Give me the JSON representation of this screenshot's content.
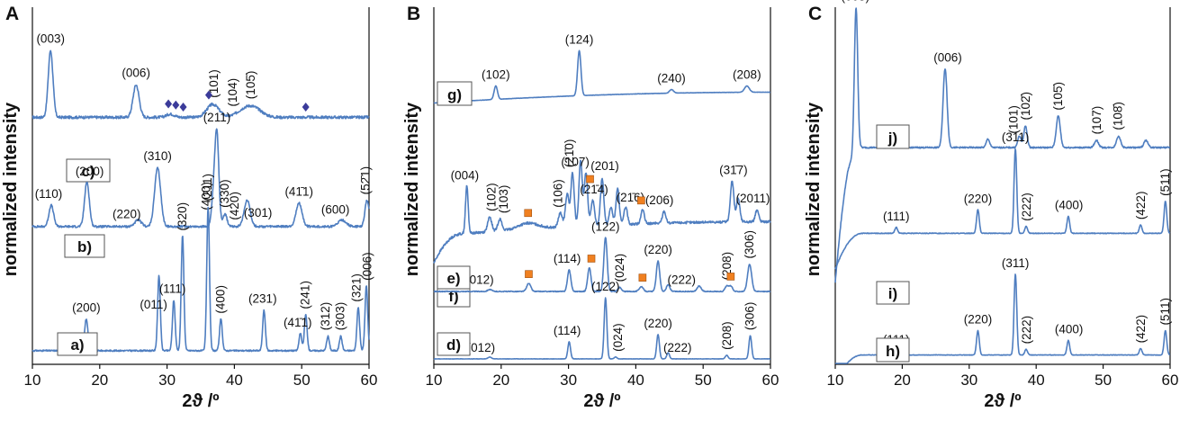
{
  "figure": {
    "panels": [
      "A",
      "B",
      "C"
    ],
    "xlabel": "2ϑ /º",
    "ylabel": "normalized intensity",
    "xticks": [
      10,
      20,
      30,
      40,
      50,
      60
    ],
    "colors": {
      "trace": "#4f7ec0",
      "trace_dark": "#3a67a8",
      "diamond": "#3b3b9a",
      "square": "#f08020",
      "axis": "#111111"
    }
  },
  "chart_data": [
    {
      "panel": "A",
      "type": "line",
      "xlabel": "2ϑ /º",
      "ylabel": "normalized intensity",
      "xlim": [
        10,
        60
      ],
      "series": [
        {
          "name": "c)",
          "baseline": 0.18,
          "noise": 0.025,
          "peaks": [
            [
              12.7,
              0.62,
              0.35
            ],
            [
              25.4,
              0.3,
              0.45
            ],
            [
              36.8,
              0.12,
              0.9
            ],
            [
              41.5,
              0.06,
              1.2
            ],
            [
              43.0,
              0.07,
              1.2
            ],
            [
              30.5,
              0.03,
              0.6
            ]
          ],
          "labels": [
            {
              "x": 12.7,
              "text": "(003)"
            },
            {
              "x": 25.4,
              "text": "(006)"
            },
            {
              "x": 37.0,
              "text": "(101)",
              "rot": true
            },
            {
              "x": 39.8,
              "text": "(104)",
              "rot": true
            },
            {
              "x": 42.5,
              "text": "(105̄)",
              "rot": true
            }
          ],
          "markers": {
            "shape": "diamond",
            "x": [
              30.2,
              31.3,
              32.4,
              36.2,
              50.6
            ]
          }
        },
        {
          "name": "b)",
          "baseline": 0.12,
          "noise": 0.02,
          "peaks": [
            [
              12.8,
              0.2,
              0.35
            ],
            [
              18.1,
              0.42,
              0.35
            ],
            [
              25.7,
              0.06,
              0.5
            ],
            [
              28.6,
              0.55,
              0.45
            ],
            [
              36.9,
              0.25,
              0.3
            ],
            [
              37.4,
              0.85,
              0.3
            ],
            [
              38.6,
              0.12,
              0.3
            ],
            [
              41.9,
              0.25,
              0.45
            ],
            [
              49.6,
              0.22,
              0.45
            ],
            [
              56.0,
              0.06,
              0.6
            ],
            [
              59.7,
              0.25,
              0.3
            ]
          ],
          "labels": [
            {
              "x": 12.4,
              "text": "(110)"
            },
            {
              "x": 18.5,
              "text": "(200)"
            },
            {
              "x": 24.0,
              "text": "(220)"
            },
            {
              "x": 28.6,
              "text": "(310)"
            },
            {
              "x": 37.4,
              "text": "(211)"
            },
            {
              "x": 35.9,
              "text": "(400)",
              "rot": true
            },
            {
              "x": 38.6,
              "text": "(330)",
              "rot": true
            },
            {
              "x": 40.1,
              "text": "(420)",
              "rot": true
            },
            {
              "x": 43.5,
              "text": "(301)"
            },
            {
              "x": 49.6,
              "text": "(41̄1)"
            },
            {
              "x": 55.0,
              "text": "(600)"
            },
            {
              "x": 59.5,
              "text": "(52̄1)",
              "rot": true
            }
          ]
        },
        {
          "name": "a)",
          "baseline": 0.07,
          "noise": 0.01,
          "peaks": [
            [
              18.0,
              0.22,
              0.25
            ],
            [
              28.8,
              0.52,
              0.2
            ],
            [
              31.0,
              0.35,
              0.2
            ],
            [
              32.3,
              0.8,
              0.2
            ],
            [
              36.1,
              1.0,
              0.2
            ],
            [
              38.0,
              0.22,
              0.2
            ],
            [
              44.4,
              0.28,
              0.2
            ],
            [
              49.8,
              0.12,
              0.2
            ],
            [
              50.6,
              0.25,
              0.2
            ],
            [
              53.9,
              0.1,
              0.2
            ],
            [
              55.8,
              0.1,
              0.2
            ],
            [
              58.4,
              0.3,
              0.2
            ],
            [
              59.6,
              0.45,
              0.2
            ]
          ],
          "labels": [
            {
              "x": 18.0,
              "text": "(200)"
            },
            {
              "x": 28.0,
              "text": "(011)"
            },
            {
              "x": 30.8,
              "text": "(111)"
            },
            {
              "x": 32.3,
              "text": "(320)",
              "rot": true
            },
            {
              "x": 36.1,
              "text": "(211)",
              "rot": true
            },
            {
              "x": 38.0,
              "text": "(400)",
              "rot": true
            },
            {
              "x": 44.2,
              "text": "(231)"
            },
            {
              "x": 49.4,
              "text": "(41̄1)"
            },
            {
              "x": 50.6,
              "text": "(241)",
              "rot": true
            },
            {
              "x": 53.6,
              "text": "(312)",
              "rot": true
            },
            {
              "x": 55.8,
              "text": "(303)",
              "rot": true
            },
            {
              "x": 58.2,
              "text": "(321)",
              "rot": true
            },
            {
              "x": 59.8,
              "text": "(006)",
              "rot": true
            }
          ]
        }
      ]
    },
    {
      "panel": "B",
      "type": "line",
      "xlabel": "2ϑ /º",
      "ylabel": "normalized intensity",
      "xlim": [
        10,
        60
      ],
      "series": [
        {
          "name": "g)",
          "baseline": 0.05,
          "noise": 0.006,
          "peaks": [
            [
              19.2,
              0.3,
              0.25
            ],
            [
              31.6,
              1.0,
              0.25
            ],
            [
              45.3,
              0.08,
              0.3
            ],
            [
              56.5,
              0.14,
              0.35
            ]
          ],
          "labels": [
            {
              "x": 19.2,
              "text": "(102)"
            },
            {
              "x": 31.6,
              "text": "(124)"
            },
            {
              "x": 45.3,
              "text": "(240)"
            },
            {
              "x": 56.5,
              "text": "(208)"
            }
          ]
        },
        {
          "name": "f)",
          "baseline": 0.08,
          "noise": 0.02,
          "peaks": [
            [
              14.9,
              0.4,
              0.2
            ],
            [
              18.3,
              0.12,
              0.3
            ],
            [
              19.8,
              0.1,
              0.3
            ],
            [
              24.0,
              0.05,
              1.5
            ],
            [
              28.8,
              0.12,
              0.3
            ],
            [
              29.8,
              0.28,
              0.25
            ],
            [
              30.6,
              0.45,
              0.25
            ],
            [
              31.8,
              0.55,
              0.25
            ],
            [
              32.6,
              0.45,
              0.25
            ],
            [
              33.6,
              0.22,
              0.25
            ],
            [
              35.0,
              0.4,
              0.25
            ],
            [
              36.3,
              0.15,
              0.25
            ],
            [
              37.3,
              0.3,
              0.25
            ],
            [
              38.5,
              0.15,
              0.25
            ],
            [
              41.0,
              0.12,
              0.25
            ],
            [
              44.2,
              0.1,
              0.25
            ],
            [
              54.3,
              0.35,
              0.25
            ],
            [
              55.2,
              0.2,
              0.25
            ],
            [
              58.0,
              0.1,
              0.25
            ]
          ],
          "labels": [
            {
              "x": 14.6,
              "text": "(004)"
            },
            {
              "x": 18.6,
              "text": "(102)",
              "rot": true
            },
            {
              "x": 20.4,
              "text": "(103)",
              "rot": true
            },
            {
              "x": 28.5,
              "text": "(106)",
              "rot": true
            },
            {
              "x": 30.2,
              "text": "(21̄0)",
              "rot": true
            },
            {
              "x": 31.0,
              "text": "(107)"
            },
            {
              "x": 33.8,
              "text": "(21̄4)"
            },
            {
              "x": 35.4,
              "text": "(201)"
            },
            {
              "x": 39.2,
              "text": "(21̄6)"
            },
            {
              "x": 43.5,
              "text": "(206)"
            },
            {
              "x": 54.5,
              "text": "(31̄7)"
            },
            {
              "x": 57.4,
              "text": "(2011)"
            }
          ],
          "markers": {
            "shape": "square",
            "x": [
              24.0,
              33.2,
              40.8
            ]
          }
        },
        {
          "name": "e)",
          "baseline": 0.08,
          "noise": 0.012,
          "peaks": [
            [
              18.3,
              0.03,
              0.3
            ],
            [
              24.1,
              0.12,
              0.3
            ],
            [
              30.1,
              0.32,
              0.25
            ],
            [
              33.1,
              0.35,
              0.25
            ],
            [
              35.5,
              0.8,
              0.25
            ],
            [
              37.6,
              0.06,
              0.25
            ],
            [
              40.8,
              0.07,
              0.3
            ],
            [
              43.3,
              0.45,
              0.25
            ],
            [
              44.8,
              0.1,
              0.25
            ],
            [
              49.4,
              0.08,
              0.3
            ],
            [
              53.5,
              0.08,
              0.25
            ],
            [
              54.1,
              0.08,
              0.25
            ],
            [
              56.9,
              0.4,
              0.3
            ]
          ],
          "labels": [
            {
              "x": 16.8,
              "text": "(012)"
            },
            {
              "x": 29.8,
              "text": "(114)"
            },
            {
              "x": 35.5,
              "text": "(122)"
            },
            {
              "x": 37.7,
              "text": "(024)",
              "rot": true
            },
            {
              "x": 43.3,
              "text": "(220)"
            },
            {
              "x": 46.8,
              "text": "(222)"
            },
            {
              "x": 53.6,
              "text": "(208)",
              "rot": true
            },
            {
              "x": 56.9,
              "text": "(306)",
              "rot": true
            }
          ],
          "markers": {
            "shape": "square",
            "x": [
              24.1,
              33.4,
              41.0,
              54.1
            ]
          }
        },
        {
          "name": "d)",
          "baseline": 0.03,
          "noise": 0.004,
          "peaks": [
            [
              18.3,
              0.03,
              0.25
            ],
            [
              30.1,
              0.28,
              0.2
            ],
            [
              35.5,
              1.0,
              0.2
            ],
            [
              37.0,
              0.03,
              0.2
            ],
            [
              43.3,
              0.4,
              0.2
            ],
            [
              44.8,
              0.1,
              0.2
            ],
            [
              53.5,
              0.06,
              0.2
            ],
            [
              57.0,
              0.38,
              0.2
            ]
          ],
          "labels": [
            {
              "x": 17.0,
              "text": "(012)"
            },
            {
              "x": 29.8,
              "text": "(114)"
            },
            {
              "x": 35.5,
              "text": "(122)"
            },
            {
              "x": 37.4,
              "text": "(024)",
              "rot": true
            },
            {
              "x": 43.3,
              "text": "(220)"
            },
            {
              "x": 46.2,
              "text": "(222)"
            },
            {
              "x": 53.6,
              "text": "(208)",
              "rot": true
            },
            {
              "x": 57.0,
              "text": "(306)",
              "rot": true
            }
          ]
        }
      ]
    },
    {
      "panel": "C",
      "type": "line",
      "xlabel": "2ϑ /º",
      "ylabel": "normalized intensity",
      "xlim": [
        10,
        60
      ],
      "series": [
        {
          "name": "j)",
          "baseline": 0.1,
          "noise": 0.01,
          "peaks": [
            [
              13.1,
              1.0,
              0.25
            ],
            [
              26.4,
              0.55,
              0.3
            ],
            [
              32.8,
              0.06,
              0.25
            ],
            [
              37.5,
              0.08,
              0.25
            ],
            [
              38.4,
              0.15,
              0.25
            ],
            [
              43.3,
              0.22,
              0.3
            ],
            [
              49.0,
              0.05,
              0.3
            ],
            [
              52.3,
              0.08,
              0.3
            ],
            [
              56.4,
              0.05,
              0.3
            ]
          ],
          "labels": [
            {
              "x": 13.0,
              "text": "(003)"
            },
            {
              "x": 26.8,
              "text": "(006)"
            },
            {
              "x": 36.7,
              "text": "(101)",
              "rot": true
            },
            {
              "x": 38.5,
              "text": "(102̄)",
              "rot": true
            },
            {
              "x": 43.3,
              "text": "(105̄)",
              "rot": true
            },
            {
              "x": 49.1,
              "text": "(107)",
              "rot": true
            },
            {
              "x": 52.3,
              "text": "(108̄)",
              "rot": true
            }
          ]
        },
        {
          "name": "i)",
          "baseline": 0.06,
          "noise": 0.008,
          "peaks": [
            [
              19.1,
              0.07,
              0.2
            ],
            [
              31.3,
              0.28,
              0.2
            ],
            [
              36.9,
              1.0,
              0.2
            ],
            [
              38.5,
              0.08,
              0.2
            ],
            [
              44.8,
              0.2,
              0.2
            ],
            [
              55.6,
              0.1,
              0.2
            ],
            [
              59.3,
              0.38,
              0.2
            ]
          ],
          "labels": [
            {
              "x": 19.1,
              "text": "(111)"
            },
            {
              "x": 31.3,
              "text": "(220)"
            },
            {
              "x": 36.9,
              "text": "(311)"
            },
            {
              "x": 38.6,
              "text": "(222)",
              "rot": true
            },
            {
              "x": 44.9,
              "text": "(400)"
            },
            {
              "x": 55.7,
              "text": "(422)",
              "rot": true
            },
            {
              "x": 59.3,
              "text": "(511)",
              "rot": true
            }
          ]
        },
        {
          "name": "h)",
          "baseline": 0.06,
          "noise": 0.006,
          "peaks": [
            [
              19.1,
              0.05,
              0.2
            ],
            [
              31.3,
              0.3,
              0.2
            ],
            [
              36.9,
              1.0,
              0.2
            ],
            [
              38.5,
              0.07,
              0.2
            ],
            [
              44.8,
              0.18,
              0.2
            ],
            [
              55.6,
              0.08,
              0.2
            ],
            [
              59.3,
              0.3,
              0.2
            ]
          ],
          "labels": [
            {
              "x": 19.1,
              "text": "(111)"
            },
            {
              "x": 31.3,
              "text": "(220)"
            },
            {
              "x": 36.9,
              "text": "(311)"
            },
            {
              "x": 38.6,
              "text": "(222)",
              "rot": true
            },
            {
              "x": 44.9,
              "text": "(400)"
            },
            {
              "x": 55.7,
              "text": "(422)",
              "rot": true
            },
            {
              "x": 59.3,
              "text": "(511)",
              "rot": true
            }
          ]
        }
      ]
    }
  ]
}
